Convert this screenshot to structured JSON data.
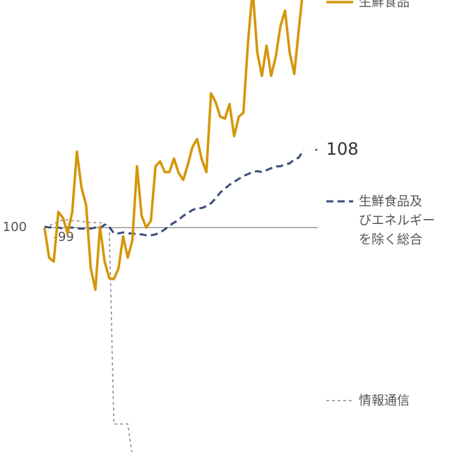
{
  "chart_data": {
    "type": "line",
    "categories": [
      null,
      null,
      null,
      null,
      "-99",
      null,
      null,
      null,
      null,
      null,
      null,
      null,
      null,
      null,
      null,
      null,
      null,
      null,
      null,
      null,
      null,
      null,
      null,
      null,
      null,
      null,
      null,
      null,
      null,
      null,
      null,
      null,
      null,
      null,
      null,
      null,
      null,
      null,
      null,
      null,
      null,
      null,
      null,
      null,
      null,
      null,
      null,
      null,
      null,
      null,
      null,
      null,
      null,
      null,
      null,
      null,
      null
    ],
    "ylim": [
      76.9,
      123.4
    ],
    "yticks": [
      100
    ],
    "series": [
      {
        "name": "生鮮食品",
        "color": "#d4960a",
        "style": "solid",
        "values": [
          100,
          96.9,
          96.5,
          101.6,
          101.0,
          99.4,
          101.6,
          107.8,
          104.1,
          102.3,
          95.8,
          93.6,
          100.1,
          96.5,
          94.8,
          94.7,
          95.8,
          99.1,
          96.9,
          98.7,
          106.3,
          101.2,
          100,
          100.7,
          106.3,
          106.8,
          105.7,
          105.7,
          107.1,
          105.6,
          104.9,
          106.5,
          108.3,
          109.1,
          107.0,
          105.7,
          113.8,
          112.9,
          111.4,
          111.2,
          112.7,
          109.4,
          111.4,
          111.8,
          119.1,
          124.5,
          118.0,
          115.6,
          118.7,
          115.6,
          117.6,
          120.7,
          122.3,
          118.0,
          115.8,
          120.5,
          125.0
        ]
      },
      {
        "name": "生鮮食品及\nびエネルギー\nを除く総合",
        "color": "#3d4f7c",
        "style": "dashed",
        "values": [
          100.1,
          100,
          100.1,
          100,
          99.9,
          100,
          100,
          99.9,
          99.9,
          99.9,
          99.9,
          100,
          99.9,
          100.3,
          100.1,
          99.4,
          99.4,
          99.5,
          99.4,
          99.4,
          99.3,
          99.3,
          99.2,
          99.2,
          99.3,
          99.5,
          99.8,
          100.2,
          100.5,
          100.8,
          101.2,
          101.5,
          101.8,
          102.0,
          102.0,
          102.2,
          102.5,
          103.0,
          103.6,
          104.0,
          104.4,
          104.7,
          105.0,
          105.3,
          105.5,
          105.7,
          105.8,
          105.7,
          105.9,
          106.1,
          106.3,
          106.3,
          106.5,
          106.6,
          107.0,
          107.2,
          108
        ]
      },
      {
        "name": "情報通信",
        "color": "#888888",
        "style": "dotted",
        "values": [
          100,
          100.2,
          100.4,
          100.6,
          100.8,
          100.8,
          100.7,
          100.7,
          100.6,
          100.6,
          100.5,
          100.5,
          100.5,
          100.4,
          100.1,
          79.8,
          79.8,
          79.8,
          79.8,
          76.5,
          null,
          null,
          null,
          null,
          null,
          null,
          null,
          null,
          null,
          null,
          null,
          null,
          null,
          null,
          null,
          null,
          null,
          null,
          null,
          null,
          null,
          null,
          null,
          null,
          null,
          null,
          null,
          null,
          null,
          null,
          null,
          null,
          null,
          null,
          null,
          null,
          null
        ]
      }
    ]
  }
}
